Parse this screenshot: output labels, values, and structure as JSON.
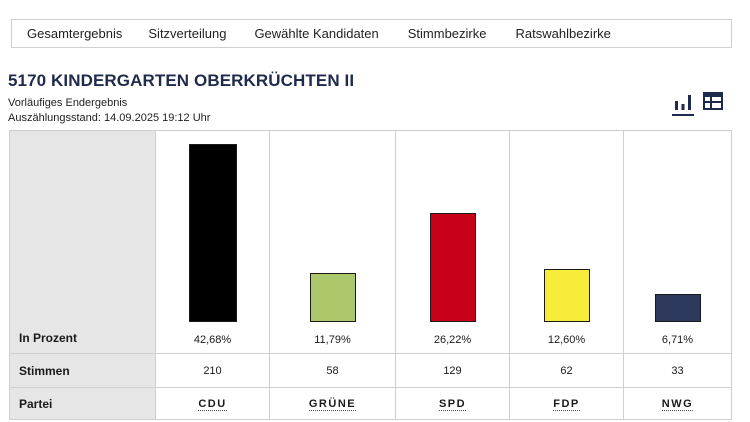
{
  "tabs": [
    "Gesamtergebnis",
    "Sitzverteilung",
    "Gewählte Kandidaten",
    "Stimmbezirke",
    "Ratswahlbezirke"
  ],
  "header": {
    "title": "5170 KINDERGARTEN OBERKRÜCHTEN II",
    "status": "Vorläufiges Endergebnis",
    "count_state": "Auszählungsstand: 14.09.2025 19:12 Uhr"
  },
  "view_toggle": {
    "icons": [
      "bar-chart-icon",
      "table-icon"
    ],
    "active": "bar-chart-icon"
  },
  "table": {
    "row_labels": {
      "percent": "In Prozent",
      "votes": "Stimmen",
      "party": "Partei"
    }
  },
  "chart_data": {
    "type": "bar",
    "categories": [
      "CDU",
      "GRÜNE",
      "SPD",
      "FDP",
      "NWG"
    ],
    "values": [
      42.68,
      11.79,
      26.22,
      12.6,
      6.71
    ],
    "value_labels": [
      "42,68%",
      "11,79%",
      "26,22%",
      "12,60%",
      "6,71%"
    ],
    "votes": [
      "210",
      "58",
      "129",
      "62",
      "33"
    ],
    "colors": [
      "#000000",
      "#acc86a",
      "#c8001a",
      "#f8ec3a",
      "#2d3a5e"
    ],
    "ylabel": "In Prozent",
    "ylim": [
      0,
      42.68
    ]
  }
}
